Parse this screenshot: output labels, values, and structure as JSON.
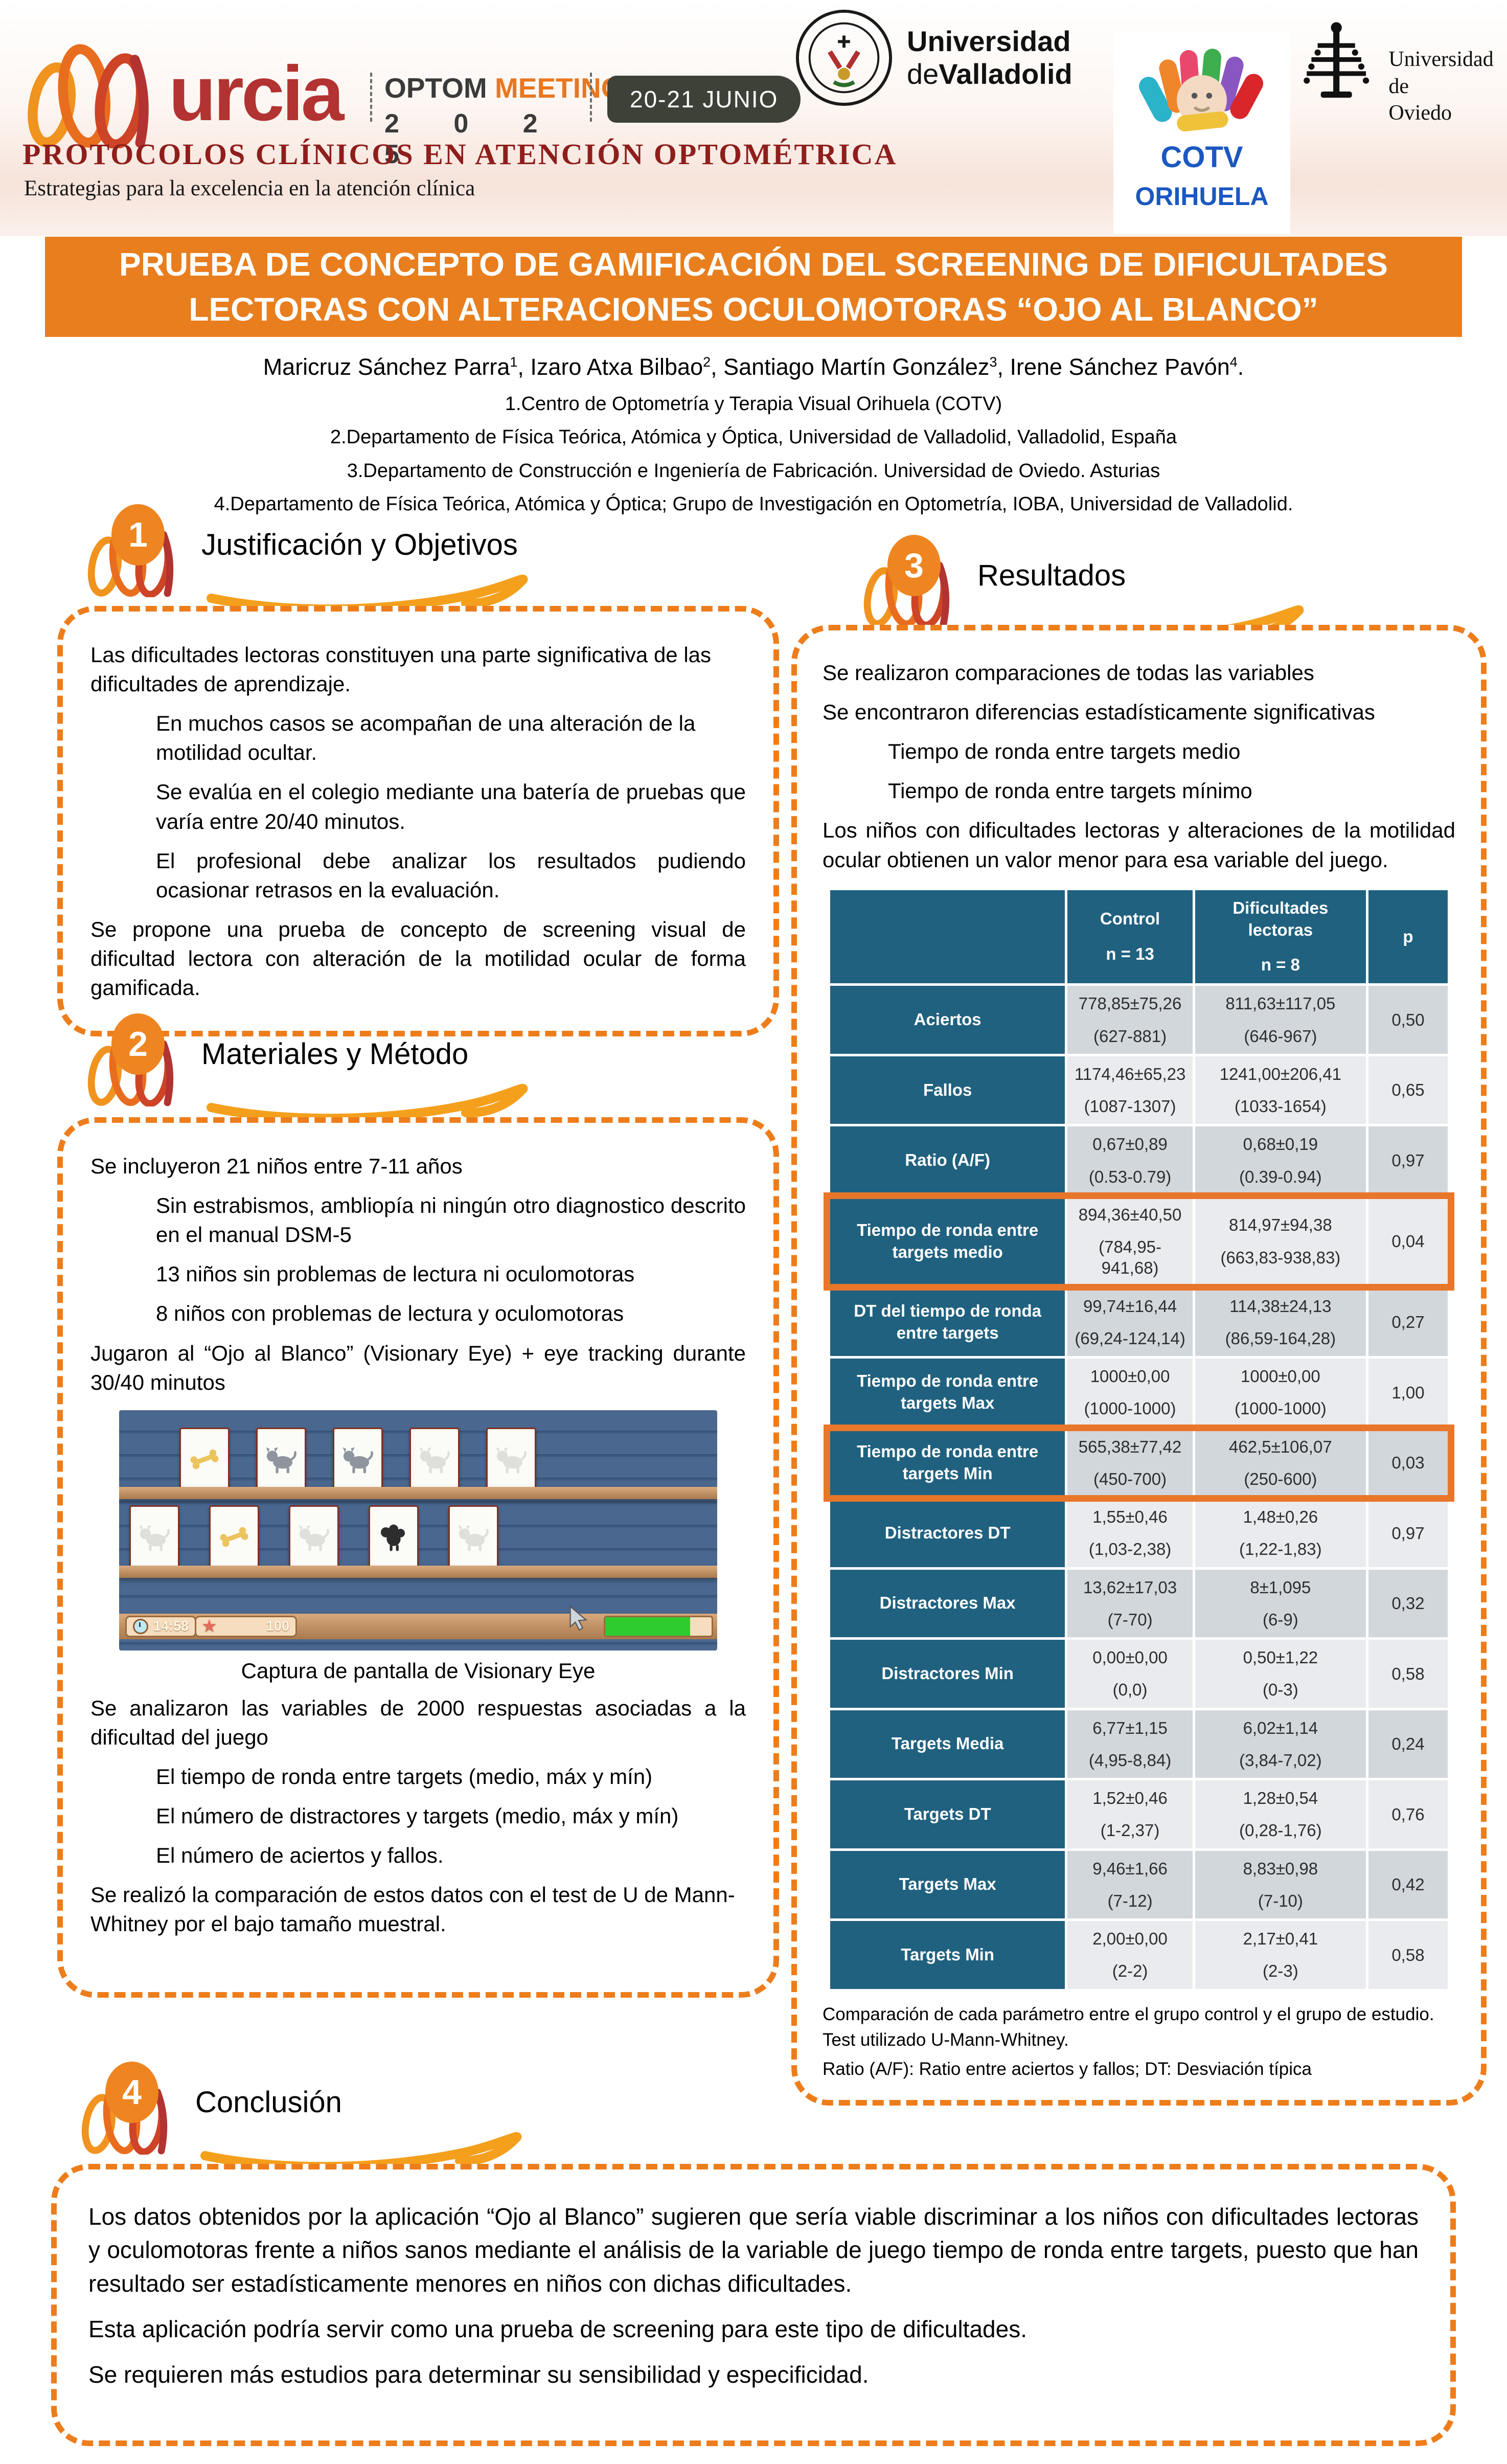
{
  "colors": {
    "accent_orange": "#E87E1E",
    "dash_orange": "#ED7D1B",
    "highlight_orange": "#E8762B",
    "table_teal": "#20617F",
    "row_dark": "#D2D7DC",
    "row_light": "#E9EBEE",
    "murcia_red": "#B23331",
    "event_red": "#8E1E1C",
    "cotv_blue": "#1B58C0",
    "badge_dark": "#3D4138"
  },
  "header": {
    "murcia_text": "urcia",
    "optom": "OPTOM",
    "meeting": "MEETING",
    "year": "2 0 2 5",
    "date_badge": "20-21 JUNIO",
    "event_title": "PROTOCOLOS CLÍNICOS EN ATENCIÓN OPTOMÉTRICA",
    "event_subtitle": "Estrategias para la excelencia en la atención clínica",
    "uva1": "Universidad",
    "uva2a": "de",
    "uva2b": "Valladolid",
    "cotv1": "COTV",
    "cotv2": "ORIHUELA",
    "oviedo1": "Universidad de",
    "oviedo2": "Oviedo"
  },
  "title": {
    "line1": "PRUEBA DE CONCEPTO DE GAMIFICACIÓN DEL SCREENING DE DIFICULTADES",
    "line2": "LECTORAS CON ALTERACIONES OCULOMOTORAS “OJO AL BLANCO”"
  },
  "authors": {
    "names": [
      {
        "text": "Maricruz Sánchez Parra",
        "sup": "1"
      },
      {
        "text": ", Izaro Atxa Bilbao",
        "sup": "2"
      },
      {
        "text": ", Santiago Martín González",
        "sup": "3"
      },
      {
        "text": ", Irene Sánchez Pavón",
        "sup": "4"
      },
      {
        "text": ".",
        "sup": ""
      }
    ],
    "affiliations": [
      "1.Centro de Optometría y Terapia Visual Orihuela (COTV)",
      "2.Departamento de Física Teórica, Atómica y Óptica, Universidad de Valladolid, Valladolid, España",
      "3.Departamento de Construcción e Ingeniería de Fabricación. Universidad de Oviedo. Asturias",
      "4.Departamento de Física Teórica, Atómica y Óptica; Grupo de Investigación en Optometría, IOBA, Universidad de Valladolid."
    ]
  },
  "sections": {
    "s1": {
      "number": "1",
      "title": "Justificación y Objetivos",
      "paragraphs": [
        {
          "text": "Las dificultades lectoras constituyen una parte significativa de las dificultades de aprendizaje.",
          "indent": false,
          "justify": false
        },
        {
          "text": "En muchos casos se acompañan de una alteración de la motilidad ocultar.",
          "indent": true,
          "justify": false
        },
        {
          "text": "Se evalúa en el colegio mediante una batería de pruebas que varía entre 20/40 minutos.",
          "indent": true,
          "justify": true
        },
        {
          "text": "El profesional debe analizar los resultados pudiendo ocasionar retrasos en la evaluación.",
          "indent": true,
          "justify": true
        },
        {
          "text": "Se propone una prueba de concepto de screening visual de dificultad lectora con alteración de la motilidad ocular de forma gamificada.",
          "indent": false,
          "justify": true
        }
      ]
    },
    "s2": {
      "number": "2",
      "title": "Materiales y Método",
      "paragraphs_top": [
        {
          "text": "Se incluyeron 21 niños entre 7-11 años",
          "indent": false,
          "justify": false
        },
        {
          "text": "Sin estrabismos, ambliopía ni ningún otro diagnostico descrito en el manual DSM-5",
          "indent": true,
          "justify": true
        },
        {
          "text": "13 niños sin problemas de lectura ni oculomotoras",
          "indent": true,
          "justify": false
        },
        {
          "text": "8 niños con problemas de lectura y oculomotoras",
          "indent": true,
          "justify": false
        },
        {
          "text": "Jugaron al “Ojo al Blanco” (Visionary Eye) + eye tracking durante 30/40 minutos",
          "indent": false,
          "justify": true
        }
      ],
      "paragraphs_bottom": [
        {
          "text": "Se analizaron las variables de 2000 respuestas asociadas a la dificultad del juego",
          "indent": false,
          "justify": true
        },
        {
          "text": "El tiempo de ronda entre targets (medio, máx y mín)",
          "indent": true,
          "justify": false
        },
        {
          "text": "El número de distractores y targets (medio, máx y mín)",
          "indent": true,
          "justify": false
        },
        {
          "text": "El número de aciertos y fallos.",
          "indent": true,
          "justify": false
        },
        {
          "text": "Se realizó la comparación de estos datos con el test de U de Mann-Whitney por el bajo tamaño muestral.",
          "indent": false,
          "justify": false
        }
      ]
    },
    "s3": {
      "number": "3",
      "title": "Resultados",
      "paragraphs": [
        {
          "text": "Se realizaron comparaciones de todas las variables",
          "indent": false,
          "justify": false
        },
        {
          "text": "Se encontraron diferencias estadísticamente significativas",
          "indent": false,
          "justify": true
        },
        {
          "text": "Tiempo de ronda entre targets medio",
          "indent": true,
          "justify": false
        },
        {
          "text": "Tiempo de ronda entre targets mínimo",
          "indent": true,
          "justify": false
        },
        {
          "text": "Los niños con dificultades lectoras y alteraciones de la motilidad ocular obtienen un valor menor para esa variable del juego.",
          "indent": false,
          "justify": true
        }
      ],
      "table": {
        "header": {
          "control": "Control",
          "control_n": "n = 13",
          "dif": "Dificultades lectoras",
          "dif_n": "n = 8",
          "p": "p"
        },
        "rows": [
          {
            "label": "Aciertos",
            "control": "778,85±75,26",
            "control_range": "(627-881)",
            "dif": "811,63±117,05",
            "dif_range": "(646-967)",
            "p": "0,50",
            "highlight": false
          },
          {
            "label": "Fallos",
            "control": "1174,46±65,23",
            "control_range": "(1087-1307)",
            "dif": "1241,00±206,41",
            "dif_range": "(1033-1654)",
            "p": "0,65",
            "highlight": false
          },
          {
            "label": "Ratio (A/F)",
            "control": "0,67±0,89",
            "control_range": "(0.53-0.79)",
            "dif": "0,68±0,19",
            "dif_range": "(0.39-0.94)",
            "p": "0,97",
            "highlight": false
          },
          {
            "label": "Tiempo de ronda entre targets medio",
            "control": "894,36±40,50",
            "control_range": "(784,95-941,68)",
            "dif": "814,97±94,38",
            "dif_range": "(663,83-938,83)",
            "p": "0,04",
            "highlight": true
          },
          {
            "label": "DT del tiempo de ronda entre targets",
            "control": "99,74±16,44",
            "control_range": "(69,24-124,14)",
            "dif": "114,38±24,13",
            "dif_range": "(86,59-164,28)",
            "p": "0,27",
            "highlight": false
          },
          {
            "label": "Tiempo de ronda entre targets Max",
            "control": "1000±0,00",
            "control_range": "(1000-1000)",
            "dif": "1000±0,00",
            "dif_range": "(1000-1000)",
            "p": "1,00",
            "highlight": false
          },
          {
            "label": "Tiempo de ronda entre targets Min",
            "control": "565,38±77,42",
            "control_range": "(450-700)",
            "dif": "462,5±106,07",
            "dif_range": "(250-600)",
            "p": "0,03",
            "highlight": true
          },
          {
            "label": "Distractores DT",
            "control": "1,55±0,46",
            "control_range": "(1,03-2,38)",
            "dif": "1,48±0,26",
            "dif_range": "(1,22-1,83)",
            "p": "0,97",
            "highlight": false
          },
          {
            "label": "Distractores Max",
            "control": "13,62±17,03",
            "control_range": "(7-70)",
            "dif": "8±1,095",
            "dif_range": "(6-9)",
            "p": "0,32",
            "highlight": false
          },
          {
            "label": "Distractores Min",
            "control": "0,00±0,00",
            "control_range": "(0,0)",
            "dif": "0,50±1,22",
            "dif_range": "(0-3)",
            "p": "0,58",
            "highlight": false
          },
          {
            "label": "Targets Media",
            "control": "6,77±1,15",
            "control_range": "(4,95-8,84)",
            "dif": "6,02±1,14",
            "dif_range": "(3,84-7,02)",
            "p": "0,24",
            "highlight": false
          },
          {
            "label": "Targets DT",
            "control": "1,52±0,46",
            "control_range": "(1-2,37)",
            "dif": "1,28±0,54",
            "dif_range": "(0,28-1,76)",
            "p": "0,76",
            "highlight": false
          },
          {
            "label": "Targets Max",
            "control": "9,46±1,66",
            "control_range": "(7-12)",
            "dif": "8,83±0,98",
            "dif_range": "(7-10)",
            "p": "0,42",
            "highlight": false
          },
          {
            "label": "Targets Min",
            "control": "2,00±0,00",
            "control_range": "(2-2)",
            "dif": "2,17±0,41",
            "dif_range": "(2-3)",
            "p": "0,58",
            "highlight": false
          }
        ]
      },
      "footnote1": "Comparación de cada parámetro entre el grupo control y el grupo de estudio. Test utilizado U-Mann-Whitney.",
      "footnote2": "Ratio (A/F): Ratio entre aciertos y fallos; DT: Desviación típica"
    },
    "s4": {
      "number": "4",
      "title": "Conclusión",
      "paragraphs": [
        {
          "text": "Los datos obtenidos por la aplicación “Ojo al Blanco” sugieren que sería viable discriminar a los niños con dificultades lectoras y oculomotoras frente a niños sanos mediante el análisis de la variable de juego tiempo de ronda entre targets, puesto que han resultado ser estadísticamente menores en niños con dichas dificultades.",
          "indent": false,
          "justify": true
        },
        {
          "text": "Esta aplicación podría servir como una prueba de screening para este tipo de dificultades.",
          "indent": false,
          "justify": false
        },
        {
          "text": "Se requieren más estudios para determinar su sensibilidad y especificidad.",
          "indent": false,
          "justify": false
        }
      ]
    }
  },
  "game": {
    "timer": "14:58",
    "score": "100",
    "cards_row1": [
      "bone",
      "dog-gray",
      "dog-gray",
      "dog-white",
      "dog-white"
    ],
    "cards_row2": [
      "dog-white",
      "bone",
      "dog-white",
      "poodle",
      "dog-white"
    ],
    "caption": "Captura de pantalla de Visionary Eye"
  }
}
